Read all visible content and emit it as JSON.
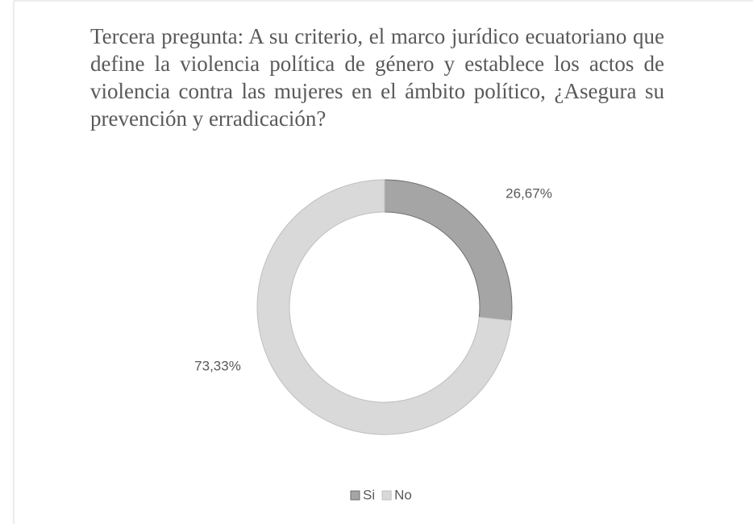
{
  "chart_data": {
    "type": "donut",
    "title": "Tercera pregunta: A su criterio, el marco jurídico ecuatoriano que define la violencia política de género y establece los actos de violencia contra las mujeres en el ámbito político, ¿Asegura su prevención y erradicación?",
    "categories": [
      "Si",
      "No"
    ],
    "values": [
      26.67,
      73.33
    ],
    "value_labels": [
      "26,67%",
      "73,33%"
    ],
    "colors": [
      "#a5a5a5",
      "#d9d9d9"
    ],
    "legend": "bottom"
  }
}
